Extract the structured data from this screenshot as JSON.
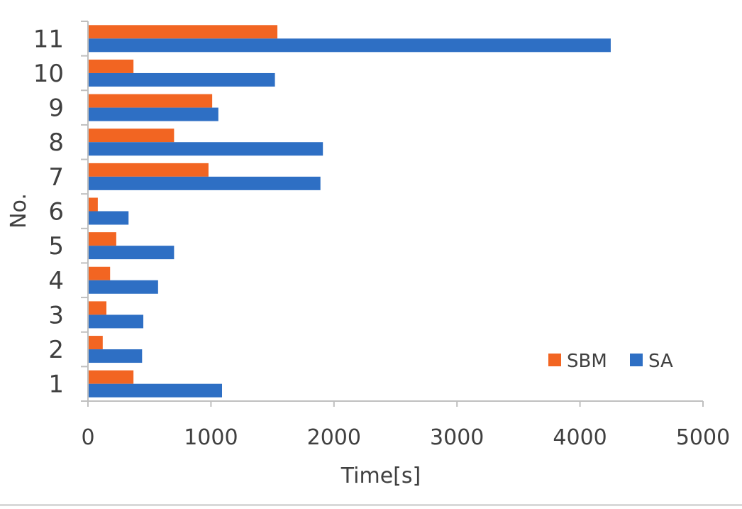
{
  "chart_data": {
    "type": "bar",
    "orientation": "horizontal",
    "title": "",
    "xlabel": "Time[s]",
    "ylabel": "No.",
    "xlim": [
      0,
      5000
    ],
    "x_ticks": [
      "0",
      "1000",
      "2000",
      "3000",
      "4000",
      "5000"
    ],
    "categories": [
      "1",
      "2",
      "3",
      "4",
      "5",
      "6",
      "7",
      "8",
      "9",
      "10",
      "11"
    ],
    "series": [
      {
        "name": "SBM",
        "color": "#f26522",
        "values": [
          370,
          120,
          150,
          180,
          230,
          80,
          980,
          700,
          1010,
          370,
          1540
        ]
      },
      {
        "name": "SA",
        "color": "#2e6fc4",
        "values": [
          1090,
          440,
          450,
          570,
          700,
          330,
          1890,
          1910,
          1060,
          1520,
          4250
        ]
      }
    ],
    "grid": false,
    "legend_position": "bottom-right",
    "legend": [
      "SBM",
      "SA"
    ]
  }
}
